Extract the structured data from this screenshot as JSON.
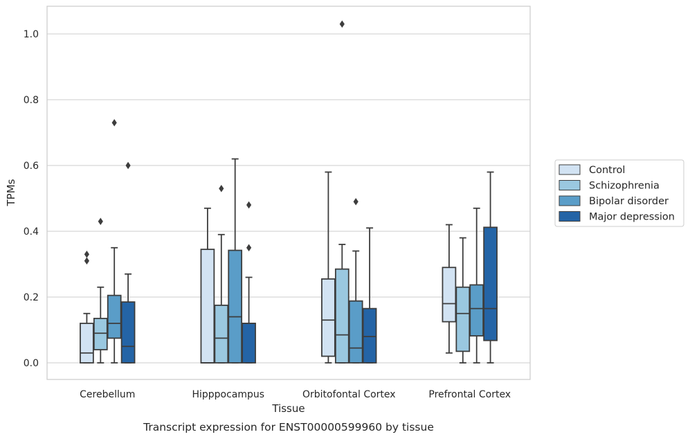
{
  "chart_data": {
    "type": "box",
    "xlabel": "Tissue",
    "ylabel": "TPMs",
    "caption": "Transcript expression for ENST00000599960 by tissue",
    "ylim": [
      -0.05,
      1.08
    ],
    "yticks": [
      "0.0",
      "0.2",
      "0.4",
      "0.6",
      "0.8",
      "1.0"
    ],
    "grid": "horizontal",
    "legend_position": "right",
    "categories": [
      "Cerebellum",
      "Hipppocampus",
      "Orbitofontal Cortex",
      "Prefrontal Cortex"
    ],
    "series": [
      {
        "name": "Control",
        "color": "#d2e3f3",
        "boxes": [
          {
            "whislo": 0.0,
            "q1": 0.0,
            "med": 0.03,
            "q3": 0.12,
            "whishi": 0.15,
            "fliers": [
              0.31,
              0.33
            ]
          },
          {
            "whislo": 0.0,
            "q1": 0.0,
            "med": 0.0,
            "q3": 0.345,
            "whishi": 0.47,
            "fliers": []
          },
          {
            "whislo": 0.0,
            "q1": 0.02,
            "med": 0.13,
            "q3": 0.255,
            "whishi": 0.58,
            "fliers": []
          },
          {
            "whislo": 0.03,
            "q1": 0.125,
            "med": 0.18,
            "q3": 0.29,
            "whishi": 0.42,
            "fliers": []
          }
        ]
      },
      {
        "name": "Schizophrenia",
        "color": "#9ac8e0",
        "boxes": [
          {
            "whislo": 0.0,
            "q1": 0.04,
            "med": 0.09,
            "q3": 0.135,
            "whishi": 0.23,
            "fliers": [
              0.43
            ]
          },
          {
            "whislo": 0.0,
            "q1": 0.0,
            "med": 0.075,
            "q3": 0.175,
            "whishi": 0.39,
            "fliers": [
              0.53
            ]
          },
          {
            "whislo": 0.0,
            "q1": 0.0,
            "med": 0.085,
            "q3": 0.285,
            "whishi": 0.36,
            "fliers": [
              1.03
            ]
          },
          {
            "whislo": 0.0,
            "q1": 0.035,
            "med": 0.15,
            "q3": 0.23,
            "whishi": 0.38,
            "fliers": []
          }
        ]
      },
      {
        "name": "Bipolar disorder",
        "color": "#5a9dc8",
        "boxes": [
          {
            "whislo": 0.0,
            "q1": 0.075,
            "med": 0.12,
            "q3": 0.205,
            "whishi": 0.35,
            "fliers": [
              0.73
            ]
          },
          {
            "whislo": 0.0,
            "q1": 0.0,
            "med": 0.14,
            "q3": 0.342,
            "whishi": 0.62,
            "fliers": []
          },
          {
            "whislo": 0.0,
            "q1": 0.0,
            "med": 0.045,
            "q3": 0.188,
            "whishi": 0.34,
            "fliers": [
              0.49
            ]
          },
          {
            "whislo": 0.0,
            "q1": 0.082,
            "med": 0.165,
            "q3": 0.237,
            "whishi": 0.47,
            "fliers": []
          }
        ]
      },
      {
        "name": "Major depression",
        "color": "#2464a6",
        "boxes": [
          {
            "whislo": 0.0,
            "q1": 0.0,
            "med": 0.05,
            "q3": 0.185,
            "whishi": 0.27,
            "fliers": [
              0.6
            ]
          },
          {
            "whislo": 0.0,
            "q1": 0.0,
            "med": 0.12,
            "q3": 0.12,
            "whishi": 0.26,
            "fliers": [
              0.35,
              0.48
            ]
          },
          {
            "whislo": 0.0,
            "q1": 0.0,
            "med": 0.08,
            "q3": 0.165,
            "whishi": 0.41,
            "fliers": []
          },
          {
            "whislo": 0.0,
            "q1": 0.068,
            "med": 0.165,
            "q3": 0.412,
            "whishi": 0.58,
            "fliers": []
          }
        ]
      }
    ]
  }
}
